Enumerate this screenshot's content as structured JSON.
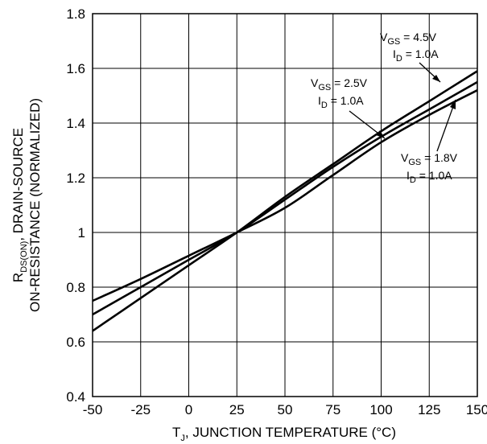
{
  "chart_data": {
    "type": "line",
    "xlabel": {
      "prefix": "T",
      "sub": "J",
      "rest": ", JUNCTION TEMPERATURE (°C)"
    },
    "ylabel": {
      "line1_prefix": "R",
      "line1_sub": "DS(ON)",
      "line1_rest": ", DRAIN-SOURCE",
      "line2": "ON-RESISTANCE (NORMALIZED)"
    },
    "xlim": [
      -50,
      150
    ],
    "ylim": [
      0.4,
      1.8
    ],
    "x_ticks": [
      "-50",
      "-25",
      "0",
      "25",
      "50",
      "75",
      "100",
      "125",
      "150"
    ],
    "y_ticks": [
      "0.4",
      "0.6",
      "0.8",
      "1",
      "1.2",
      "1.4",
      "1.6",
      "1.8"
    ],
    "grid": true,
    "series": [
      {
        "annotation": {
          "vgs_prefix": "V",
          "vgs_sub": "GS",
          "vgs_value": " = 4.5V",
          "id_prefix": "I",
          "id_sub": "D",
          "id_value": " = 1.0A"
        },
        "x": [
          -50,
          -25,
          0,
          25,
          50,
          75,
          100,
          125,
          150
        ],
        "y": [
          0.64,
          0.76,
          0.88,
          1.0,
          1.13,
          1.25,
          1.37,
          1.48,
          1.59
        ]
      },
      {
        "annotation": {
          "vgs_prefix": "V",
          "vgs_sub": "GS",
          "vgs_value": " = 2.5V",
          "id_prefix": "I",
          "id_sub": "D",
          "id_value": " = 1.0A"
        },
        "x": [
          -50,
          -25,
          0,
          25,
          50,
          75,
          100,
          125,
          150
        ],
        "y": [
          0.7,
          0.8,
          0.9,
          1.0,
          1.12,
          1.24,
          1.35,
          1.45,
          1.55
        ]
      },
      {
        "annotation": {
          "vgs_prefix": "V",
          "vgs_sub": "GS",
          "vgs_value": " = 1.8V",
          "id_prefix": "I",
          "id_sub": "D",
          "id_value": " = 1.0A"
        },
        "x": [
          -50,
          -25,
          0,
          25,
          50,
          75,
          100,
          125,
          150
        ],
        "y": [
          0.75,
          0.83,
          0.915,
          1.0,
          1.09,
          1.21,
          1.33,
          1.43,
          1.52
        ]
      }
    ]
  }
}
